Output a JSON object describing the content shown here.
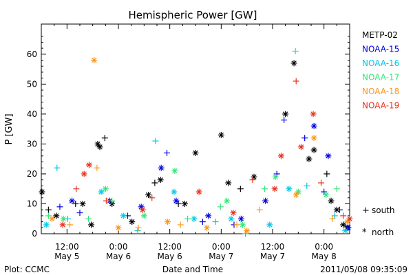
{
  "chart_data": {
    "type": "scatter",
    "title": "Hemispheric Power [GW]",
    "ylabel": "P [GW]",
    "xlabel": "Date and Time",
    "ylim": [
      0,
      68
    ],
    "xlim": [
      "2011-05-05T06:00",
      "2011-05-08T06:00"
    ],
    "yticks": [
      0,
      10,
      20,
      30,
      40,
      50,
      60
    ],
    "xticks": [
      {
        "t": "2011-05-05T12:00",
        "time": "12:00",
        "date": "May 5"
      },
      {
        "t": "2011-05-06T00:00",
        "time": "0:00",
        "date": "May 6"
      },
      {
        "t": "2011-05-06T12:00",
        "time": "12:00",
        "date": "May 6"
      },
      {
        "t": "2011-05-07T00:00",
        "time": "0:00",
        "date": "May 7"
      },
      {
        "t": "2011-05-07T12:00",
        "time": "12:00",
        "date": "May 7"
      },
      {
        "t": "2011-05-08T00:00",
        "time": "0:00",
        "date": "May 8"
      }
    ],
    "legend": {
      "placement": "right",
      "south_label": "south",
      "north_label": "north",
      "south_symbol": "+",
      "north_symbol": "*"
    },
    "series": [
      {
        "name": "METP-02",
        "color": "#000000",
        "points": [
          {
            "x": "2011-05-05T06:10",
            "y": 14,
            "hemi": "north"
          },
          {
            "x": "2011-05-05T07:40",
            "y": 8,
            "hemi": "south"
          },
          {
            "x": "2011-05-05T09:30",
            "y": 6,
            "hemi": "north"
          },
          {
            "x": "2011-05-05T14:00",
            "y": 10,
            "hemi": "south"
          },
          {
            "x": "2011-05-05T15:40",
            "y": 10,
            "hemi": "north"
          },
          {
            "x": "2011-05-05T17:40",
            "y": 3,
            "hemi": "north"
          },
          {
            "x": "2011-05-05T19:10",
            "y": 30,
            "hemi": "north"
          },
          {
            "x": "2011-05-05T19:40",
            "y": 29,
            "hemi": "north"
          },
          {
            "x": "2011-05-05T20:50",
            "y": 32,
            "hemi": "south"
          },
          {
            "x": "2011-05-05T22:30",
            "y": 10,
            "hemi": "north"
          },
          {
            "x": "2011-05-06T03:10",
            "y": 4,
            "hemi": "north"
          },
          {
            "x": "2011-05-06T07:00",
            "y": 13,
            "hemi": "north"
          },
          {
            "x": "2011-05-06T08:30",
            "y": 17,
            "hemi": "south"
          },
          {
            "x": "2011-05-06T09:50",
            "y": 18,
            "hemi": "north"
          },
          {
            "x": "2011-05-06T14:00",
            "y": 10,
            "hemi": "south"
          },
          {
            "x": "2011-05-06T15:30",
            "y": 10,
            "hemi": "north"
          },
          {
            "x": "2011-05-06T18:00",
            "y": 27,
            "hemi": "north"
          },
          {
            "x": "2011-05-07T00:00",
            "y": 33,
            "hemi": "north"
          },
          {
            "x": "2011-05-07T01:40",
            "y": 17,
            "hemi": "north"
          },
          {
            "x": "2011-05-07T04:30",
            "y": 15,
            "hemi": "south"
          },
          {
            "x": "2011-05-07T07:40",
            "y": 19,
            "hemi": "north"
          },
          {
            "x": "2011-05-07T15:00",
            "y": 40,
            "hemi": "north"
          },
          {
            "x": "2011-05-07T17:00",
            "y": 57,
            "hemi": "north"
          },
          {
            "x": "2011-05-07T20:30",
            "y": 25,
            "hemi": "north"
          },
          {
            "x": "2011-05-07T21:40",
            "y": 28,
            "hemi": "north"
          },
          {
            "x": "2011-05-08T00:40",
            "y": 20,
            "hemi": "south"
          },
          {
            "x": "2011-05-08T01:40",
            "y": 11,
            "hemi": "north"
          },
          {
            "x": "2011-05-08T03:00",
            "y": 8,
            "hemi": "north"
          },
          {
            "x": "2011-05-08T04:30",
            "y": 3,
            "hemi": "north"
          },
          {
            "x": "2011-05-08T05:30",
            "y": 2,
            "hemi": "north"
          }
        ]
      },
      {
        "name": "NOAA-15",
        "color": "#0000e6",
        "points": [
          {
            "x": "2011-05-05T10:20",
            "y": 9,
            "hemi": "south"
          },
          {
            "x": "2011-05-05T13:10",
            "y": 11,
            "hemi": "north"
          },
          {
            "x": "2011-05-05T15:00",
            "y": 7,
            "hemi": "south"
          },
          {
            "x": "2011-05-05T22:00",
            "y": 11,
            "hemi": "north"
          },
          {
            "x": "2011-05-06T02:10",
            "y": 6,
            "hemi": "south"
          },
          {
            "x": "2011-05-06T05:20",
            "y": 9,
            "hemi": "north"
          },
          {
            "x": "2011-05-06T10:00",
            "y": 22,
            "hemi": "north"
          },
          {
            "x": "2011-05-06T11:20",
            "y": 27,
            "hemi": "south"
          },
          {
            "x": "2011-05-06T13:30",
            "y": 11,
            "hemi": "north"
          },
          {
            "x": "2011-05-06T19:40",
            "y": 4,
            "hemi": "south"
          },
          {
            "x": "2011-05-06T21:00",
            "y": 6,
            "hemi": "north"
          },
          {
            "x": "2011-05-07T03:00",
            "y": 3,
            "hemi": "south"
          },
          {
            "x": "2011-05-07T04:40",
            "y": 5,
            "hemi": "north"
          },
          {
            "x": "2011-05-07T10:20",
            "y": 11,
            "hemi": "north"
          },
          {
            "x": "2011-05-07T13:00",
            "y": 20,
            "hemi": "south"
          },
          {
            "x": "2011-05-07T14:40",
            "y": 38,
            "hemi": "south"
          },
          {
            "x": "2011-05-07T19:30",
            "y": 32,
            "hemi": "south"
          },
          {
            "x": "2011-05-07T21:40",
            "y": 36,
            "hemi": "north"
          },
          {
            "x": "2011-05-08T00:00",
            "y": 14,
            "hemi": "south"
          },
          {
            "x": "2011-05-08T01:00",
            "y": 26,
            "hemi": "north"
          },
          {
            "x": "2011-05-08T03:40",
            "y": 8,
            "hemi": "south"
          },
          {
            "x": "2011-05-08T05:40",
            "y": 2,
            "hemi": "north"
          }
        ]
      },
      {
        "name": "NOAA-16",
        "color": "#00c8e6",
        "points": [
          {
            "x": "2011-05-05T07:10",
            "y": 3,
            "hemi": "north"
          },
          {
            "x": "2011-05-05T09:40",
            "y": 22,
            "hemi": "south"
          },
          {
            "x": "2011-05-05T12:10",
            "y": 5,
            "hemi": "south"
          },
          {
            "x": "2011-05-05T20:00",
            "y": 14,
            "hemi": "north"
          },
          {
            "x": "2011-05-06T01:10",
            "y": 6,
            "hemi": "north"
          },
          {
            "x": "2011-05-06T04:30",
            "y": 1,
            "hemi": "south"
          },
          {
            "x": "2011-05-06T08:40",
            "y": 31,
            "hemi": "south"
          },
          {
            "x": "2011-05-06T13:00",
            "y": 14,
            "hemi": "north"
          },
          {
            "x": "2011-05-06T17:40",
            "y": 5,
            "hemi": "north"
          },
          {
            "x": "2011-05-06T22:40",
            "y": 4,
            "hemi": "south"
          },
          {
            "x": "2011-05-07T02:20",
            "y": 5,
            "hemi": "north"
          },
          {
            "x": "2011-05-07T05:40",
            "y": 0,
            "hemi": "south"
          },
          {
            "x": "2011-05-07T11:20",
            "y": 3,
            "hemi": "north"
          },
          {
            "x": "2011-05-07T15:50",
            "y": 15,
            "hemi": "north"
          },
          {
            "x": "2011-05-07T20:00",
            "y": 16,
            "hemi": "south"
          },
          {
            "x": "2011-05-08T02:30",
            "y": 6,
            "hemi": "south"
          },
          {
            "x": "2011-05-08T05:00",
            "y": 1,
            "hemi": "north"
          }
        ]
      },
      {
        "name": "NOAA-17",
        "color": "#32e678",
        "points": [
          {
            "x": "2011-05-05T07:40",
            "y": 6,
            "hemi": "south"
          },
          {
            "x": "2011-05-05T11:10",
            "y": 5,
            "hemi": "north"
          },
          {
            "x": "2011-05-05T17:00",
            "y": 5,
            "hemi": "south"
          },
          {
            "x": "2011-05-05T21:00",
            "y": 15,
            "hemi": "north"
          },
          {
            "x": "2011-05-05T22:30",
            "y": 11,
            "hemi": "south"
          },
          {
            "x": "2011-05-06T06:00",
            "y": 6,
            "hemi": "north"
          },
          {
            "x": "2011-05-06T13:10",
            "y": 21,
            "hemi": "north"
          },
          {
            "x": "2011-05-06T16:10",
            "y": 5,
            "hemi": "south"
          },
          {
            "x": "2011-05-06T23:50",
            "y": 9,
            "hemi": "south"
          },
          {
            "x": "2011-05-07T01:20",
            "y": 11,
            "hemi": "north"
          },
          {
            "x": "2011-05-07T05:00",
            "y": 3,
            "hemi": "north"
          },
          {
            "x": "2011-05-07T10:10",
            "y": 15,
            "hemi": "south"
          },
          {
            "x": "2011-05-07T12:40",
            "y": 19,
            "hemi": "north"
          },
          {
            "x": "2011-05-07T17:20",
            "y": 61,
            "hemi": "south"
          },
          {
            "x": "2011-05-07T18:00",
            "y": 14,
            "hemi": "north"
          },
          {
            "x": "2011-05-08T00:30",
            "y": 13,
            "hemi": "north"
          },
          {
            "x": "2011-05-08T03:00",
            "y": 15,
            "hemi": "south"
          }
        ]
      },
      {
        "name": "NOAA-18",
        "color": "#ff9619",
        "points": [
          {
            "x": "2011-05-05T08:30",
            "y": 5,
            "hemi": "north"
          },
          {
            "x": "2011-05-05T12:40",
            "y": 3,
            "hemi": "south"
          },
          {
            "x": "2011-05-05T18:20",
            "y": 58,
            "hemi": "north"
          },
          {
            "x": "2011-05-05T19:00",
            "y": 22,
            "hemi": "south"
          },
          {
            "x": "2011-05-06T00:00",
            "y": 2,
            "hemi": "north"
          },
          {
            "x": "2011-05-06T04:40",
            "y": 2,
            "hemi": "south"
          },
          {
            "x": "2011-05-06T11:30",
            "y": 4,
            "hemi": "north"
          },
          {
            "x": "2011-05-06T14:30",
            "y": 3,
            "hemi": "south"
          },
          {
            "x": "2011-05-06T20:40",
            "y": 2,
            "hemi": "north"
          },
          {
            "x": "2011-05-07T03:40",
            "y": 3,
            "hemi": "south"
          },
          {
            "x": "2011-05-07T06:00",
            "y": 1,
            "hemi": "north"
          },
          {
            "x": "2011-05-07T09:00",
            "y": 8,
            "hemi": "south"
          },
          {
            "x": "2011-05-07T17:30",
            "y": 13,
            "hemi": "north"
          },
          {
            "x": "2011-05-07T21:40",
            "y": 32,
            "hemi": "north"
          },
          {
            "x": "2011-05-08T02:00",
            "y": 5,
            "hemi": "south"
          },
          {
            "x": "2011-05-08T05:30",
            "y": 4,
            "hemi": "north"
          }
        ]
      },
      {
        "name": "NOAA-19",
        "color": "#e6321e",
        "points": [
          {
            "x": "2011-05-05T11:00",
            "y": 3,
            "hemi": "north"
          },
          {
            "x": "2011-05-05T14:10",
            "y": 15,
            "hemi": "south"
          },
          {
            "x": "2011-05-05T16:00",
            "y": 20,
            "hemi": "north"
          },
          {
            "x": "2011-05-05T17:10",
            "y": 23,
            "hemi": "north"
          },
          {
            "x": "2011-05-05T21:10",
            "y": 11,
            "hemi": "south"
          },
          {
            "x": "2011-05-06T05:40",
            "y": 8,
            "hemi": "north"
          },
          {
            "x": "2011-05-06T07:50",
            "y": 12,
            "hemi": "south"
          },
          {
            "x": "2011-05-06T18:50",
            "y": 14,
            "hemi": "north"
          },
          {
            "x": "2011-05-07T02:50",
            "y": 7,
            "hemi": "north"
          },
          {
            "x": "2011-05-07T07:20",
            "y": 18,
            "hemi": "south"
          },
          {
            "x": "2011-05-07T12:30",
            "y": 15,
            "hemi": "north"
          },
          {
            "x": "2011-05-07T14:00",
            "y": 26,
            "hemi": "north"
          },
          {
            "x": "2011-05-07T17:30",
            "y": 51,
            "hemi": "south"
          },
          {
            "x": "2011-05-07T18:40",
            "y": 29,
            "hemi": "north"
          },
          {
            "x": "2011-05-07T21:30",
            "y": 40,
            "hemi": "north"
          },
          {
            "x": "2011-05-07T23:20",
            "y": 17,
            "hemi": "south"
          },
          {
            "x": "2011-05-08T04:30",
            "y": 6,
            "hemi": "south"
          },
          {
            "x": "2011-05-08T06:00",
            "y": 5,
            "hemi": "north"
          }
        ]
      }
    ]
  },
  "footer": {
    "plot_credit": "Plot: CCMC",
    "timestamp": "2011/05/08 09:35:09"
  }
}
